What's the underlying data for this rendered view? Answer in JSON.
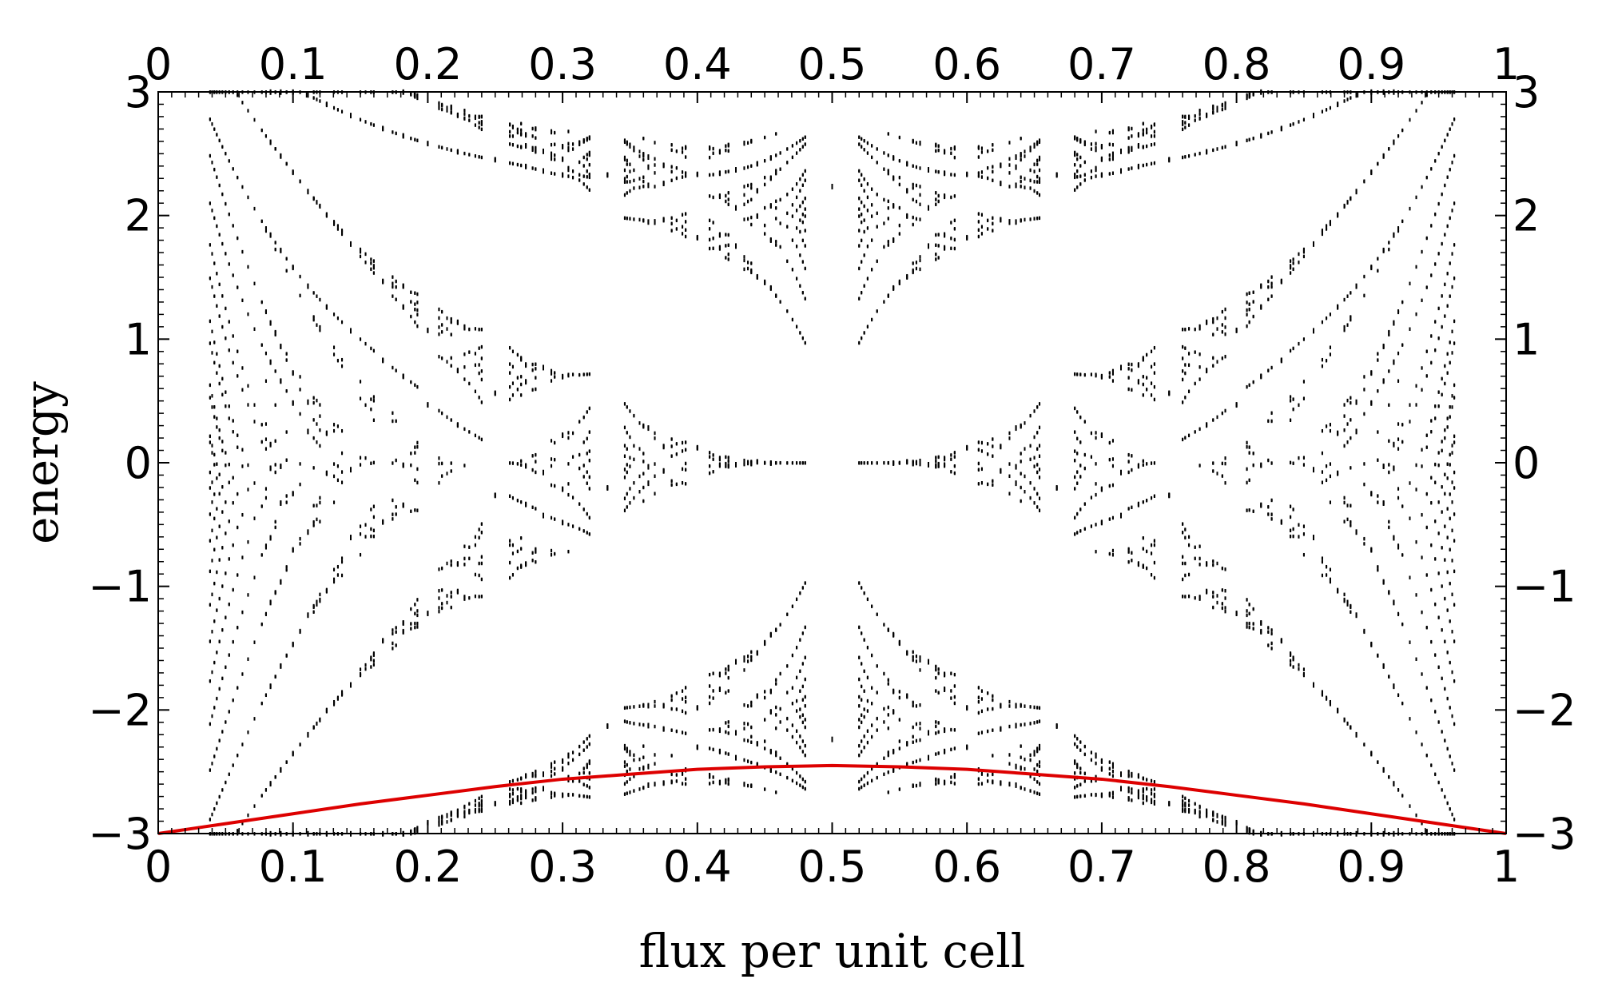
{
  "chart_data": {
    "type": "scatter",
    "title": "",
    "xlabel": "flux per unit cell",
    "ylabel": "energy",
    "xlim": [
      0,
      1
    ],
    "ylim": [
      -3,
      3
    ],
    "x_ticks": [
      "0",
      "0.1",
      "0.2",
      "0.3",
      "0.4",
      "0.5",
      "0.6",
      "0.7",
      "0.8",
      "0.9",
      "1"
    ],
    "y_ticks": [
      "−3",
      "−2",
      "−1",
      "0",
      "1",
      "2",
      "3"
    ],
    "grid": false,
    "legend": "none",
    "spectrum_rule": "Harper energy levels at rational flux p/q, q up to 26, drawn as small dots",
    "max_denominator": 26,
    "series": [
      {
        "role": "spectrum",
        "color": "#000000"
      },
      {
        "role": "lowest band edge",
        "color": "#dd0000",
        "x": [
          0,
          0.05,
          0.1,
          0.15,
          0.2,
          0.25,
          0.3,
          0.35,
          0.4,
          0.45,
          0.5,
          0.55,
          0.6,
          0.65,
          0.7,
          0.75,
          0.8,
          0.85,
          0.9,
          0.95,
          1
        ],
        "y": [
          -3.0,
          -2.92,
          -2.84,
          -2.76,
          -2.69,
          -2.62,
          -2.56,
          -2.52,
          -2.48,
          -2.46,
          -2.45,
          -2.46,
          -2.48,
          -2.52,
          -2.56,
          -2.62,
          -2.69,
          -2.76,
          -2.84,
          -2.92,
          -3.0
        ]
      }
    ]
  }
}
